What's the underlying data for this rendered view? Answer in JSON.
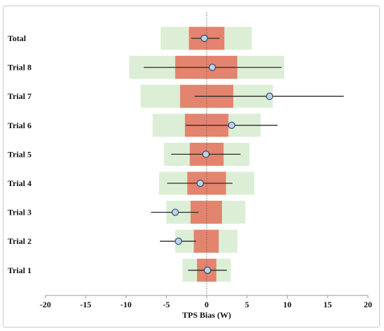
{
  "chart_data": {
    "type": "forest",
    "xlabel": "TPS Bias (W)",
    "ylabel": "",
    "xlim": [
      -20,
      20
    ],
    "xticks": [
      -20,
      -15,
      -10,
      -5,
      0,
      5,
      10,
      15,
      20
    ],
    "reference_line_x": 0,
    "categories": [
      "Total",
      "Trial 8",
      "Trial 7",
      "Trial 6",
      "Trial 5",
      "Trial 4",
      "Trial 3",
      "Trial 2",
      "Trial 1"
    ],
    "rows": [
      {
        "label": "Total",
        "mean": -0.3,
        "ci_low": -1.9,
        "ci_high": 1.6,
        "inner_low": -2.2,
        "inner_high": 2.2,
        "outer_low": -5.7,
        "outer_high": 5.6
      },
      {
        "label": "Trial 8",
        "mean": 0.7,
        "ci_low": -7.8,
        "ci_high": 9.3,
        "inner_low": -3.9,
        "inner_high": 3.8,
        "outer_low": -9.6,
        "outer_high": 9.6
      },
      {
        "label": "Trial 7",
        "mean": 7.8,
        "ci_low": -1.5,
        "ci_high": 17.0,
        "inner_low": -3.3,
        "inner_high": 3.3,
        "outer_low": -8.2,
        "outer_high": 8.2
      },
      {
        "label": "Trial 6",
        "mean": 3.1,
        "ci_low": -2.6,
        "ci_high": 8.8,
        "inner_low": -2.7,
        "inner_high": 2.7,
        "outer_low": -6.7,
        "outer_high": 6.7
      },
      {
        "label": "Trial 5",
        "mean": -0.1,
        "ci_low": -4.4,
        "ci_high": 4.2,
        "inner_low": -2.1,
        "inner_high": 2.1,
        "outer_low": -5.3,
        "outer_high": 5.3
      },
      {
        "label": "Trial 4",
        "mean": -0.8,
        "ci_low": -4.9,
        "ci_high": 3.2,
        "inner_low": -2.4,
        "inner_high": 2.4,
        "outer_low": -5.9,
        "outer_high": 5.9
      },
      {
        "label": "Trial 3",
        "mean": -3.9,
        "ci_low": -6.9,
        "ci_high": -1.0,
        "inner_low": -2.0,
        "inner_high": 1.9,
        "outer_low": -5.0,
        "outer_high": 4.8
      },
      {
        "label": "Trial 2",
        "mean": -3.5,
        "ci_low": -5.8,
        "ci_high": -1.3,
        "inner_low": -1.6,
        "inner_high": 1.5,
        "outer_low": -3.9,
        "outer_high": 3.8
      },
      {
        "label": "Trial 1",
        "mean": 0.1,
        "ci_low": -2.3,
        "ci_high": 2.5,
        "inner_low": -1.2,
        "inner_high": 1.2,
        "outer_low": -3.0,
        "outer_high": 3.0
      }
    ],
    "colors": {
      "outer_band": "#dcefd6",
      "inner_band": "#e3846e",
      "marker_fill": "#b8d4ee",
      "marker_stroke": "#2d3d55",
      "error_line": "#2a2a2a",
      "reference_line": "#666666"
    },
    "grid": false,
    "legend": "none"
  }
}
